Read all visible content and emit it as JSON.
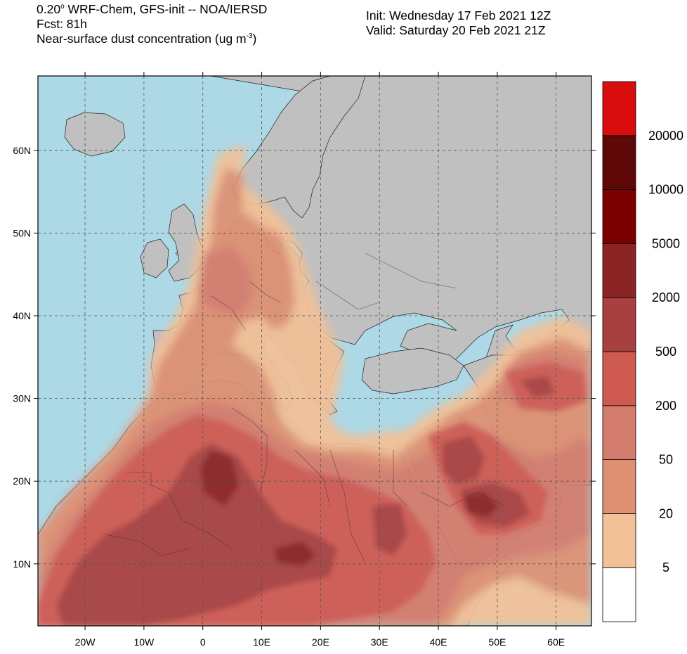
{
  "header": {
    "left": {
      "line1_prefix": "0.20",
      "line1_sup": "o",
      "line1_rest": " WRF-Chem, GFS-init -- NOA/IERSD",
      "line2": "Fcst: 81h",
      "line3_prefix": "Near-surface dust concentration (ug m",
      "line3_sup": "-3",
      "line3_suffix": ")"
    },
    "right": {
      "init": "Init: Wednesday 17 Feb 2021  12Z",
      "valid": "Valid: Saturday 20 Feb 2021  21Z"
    }
  },
  "map": {
    "lon_range": [
      -28,
      66
    ],
    "lat_range": [
      2.5,
      69
    ],
    "lon_ticks": [
      {
        "value": -20,
        "label": "20W"
      },
      {
        "value": -10,
        "label": "10W"
      },
      {
        "value": 0,
        "label": "0"
      },
      {
        "value": 10,
        "label": "10E"
      },
      {
        "value": 20,
        "label": "20E"
      },
      {
        "value": 30,
        "label": "30E"
      },
      {
        "value": 40,
        "label": "40E"
      },
      {
        "value": 50,
        "label": "50E"
      },
      {
        "value": 60,
        "label": "60E"
      }
    ],
    "lat_ticks": [
      {
        "value": 10,
        "label": "10N"
      },
      {
        "value": 20,
        "label": "20N"
      },
      {
        "value": 30,
        "label": "30N"
      },
      {
        "value": 40,
        "label": "40N"
      },
      {
        "value": 50,
        "label": "50N"
      },
      {
        "value": 60,
        "label": "60N"
      }
    ],
    "colors": {
      "ocean": "#add8e6",
      "land": "#c0c0c0",
      "border": "#333333"
    }
  },
  "colorbar": {
    "labels": [
      "5",
      "20",
      "50",
      "200",
      "500",
      "2000",
      "5000",
      "10000",
      "20000"
    ],
    "colors": [
      "#ffffff",
      "#f2c197",
      "#de9072",
      "#d47c6d",
      "#cf5a52",
      "#a84040",
      "#8b2424",
      "#7d0000",
      "#5e0808",
      "#d90d0d"
    ]
  }
}
